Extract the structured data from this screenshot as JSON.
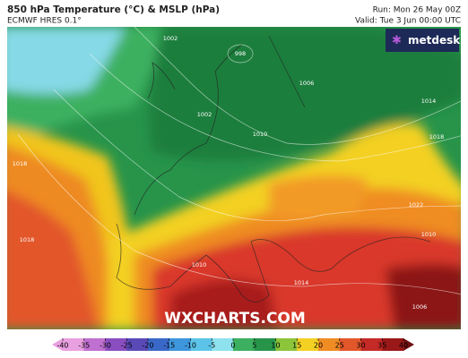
{
  "header": {
    "title": "850 hPa Temperature (°C) & MSLP (hPa)",
    "model": "ECMWF HRES 0.1°",
    "run": "Run: Mon 26 May 00Z",
    "valid": "Valid: Tue 3 Jun 00:00 UTC"
  },
  "logo": "metdesk",
  "watermark": "WXCHARTS.COM",
  "isobar_labels": [
    "1002",
    "998",
    "1006",
    "1002",
    "1010",
    "1014",
    "1018",
    "1018",
    "1022",
    "1010",
    "1010",
    "1014",
    "1006",
    "1018"
  ],
  "colorbar": {
    "ticks": [
      -40,
      -35,
      -30,
      -25,
      -20,
      -15,
      -10,
      -5,
      0,
      5,
      10,
      15,
      20,
      25,
      30,
      35,
      40
    ]
  }
}
